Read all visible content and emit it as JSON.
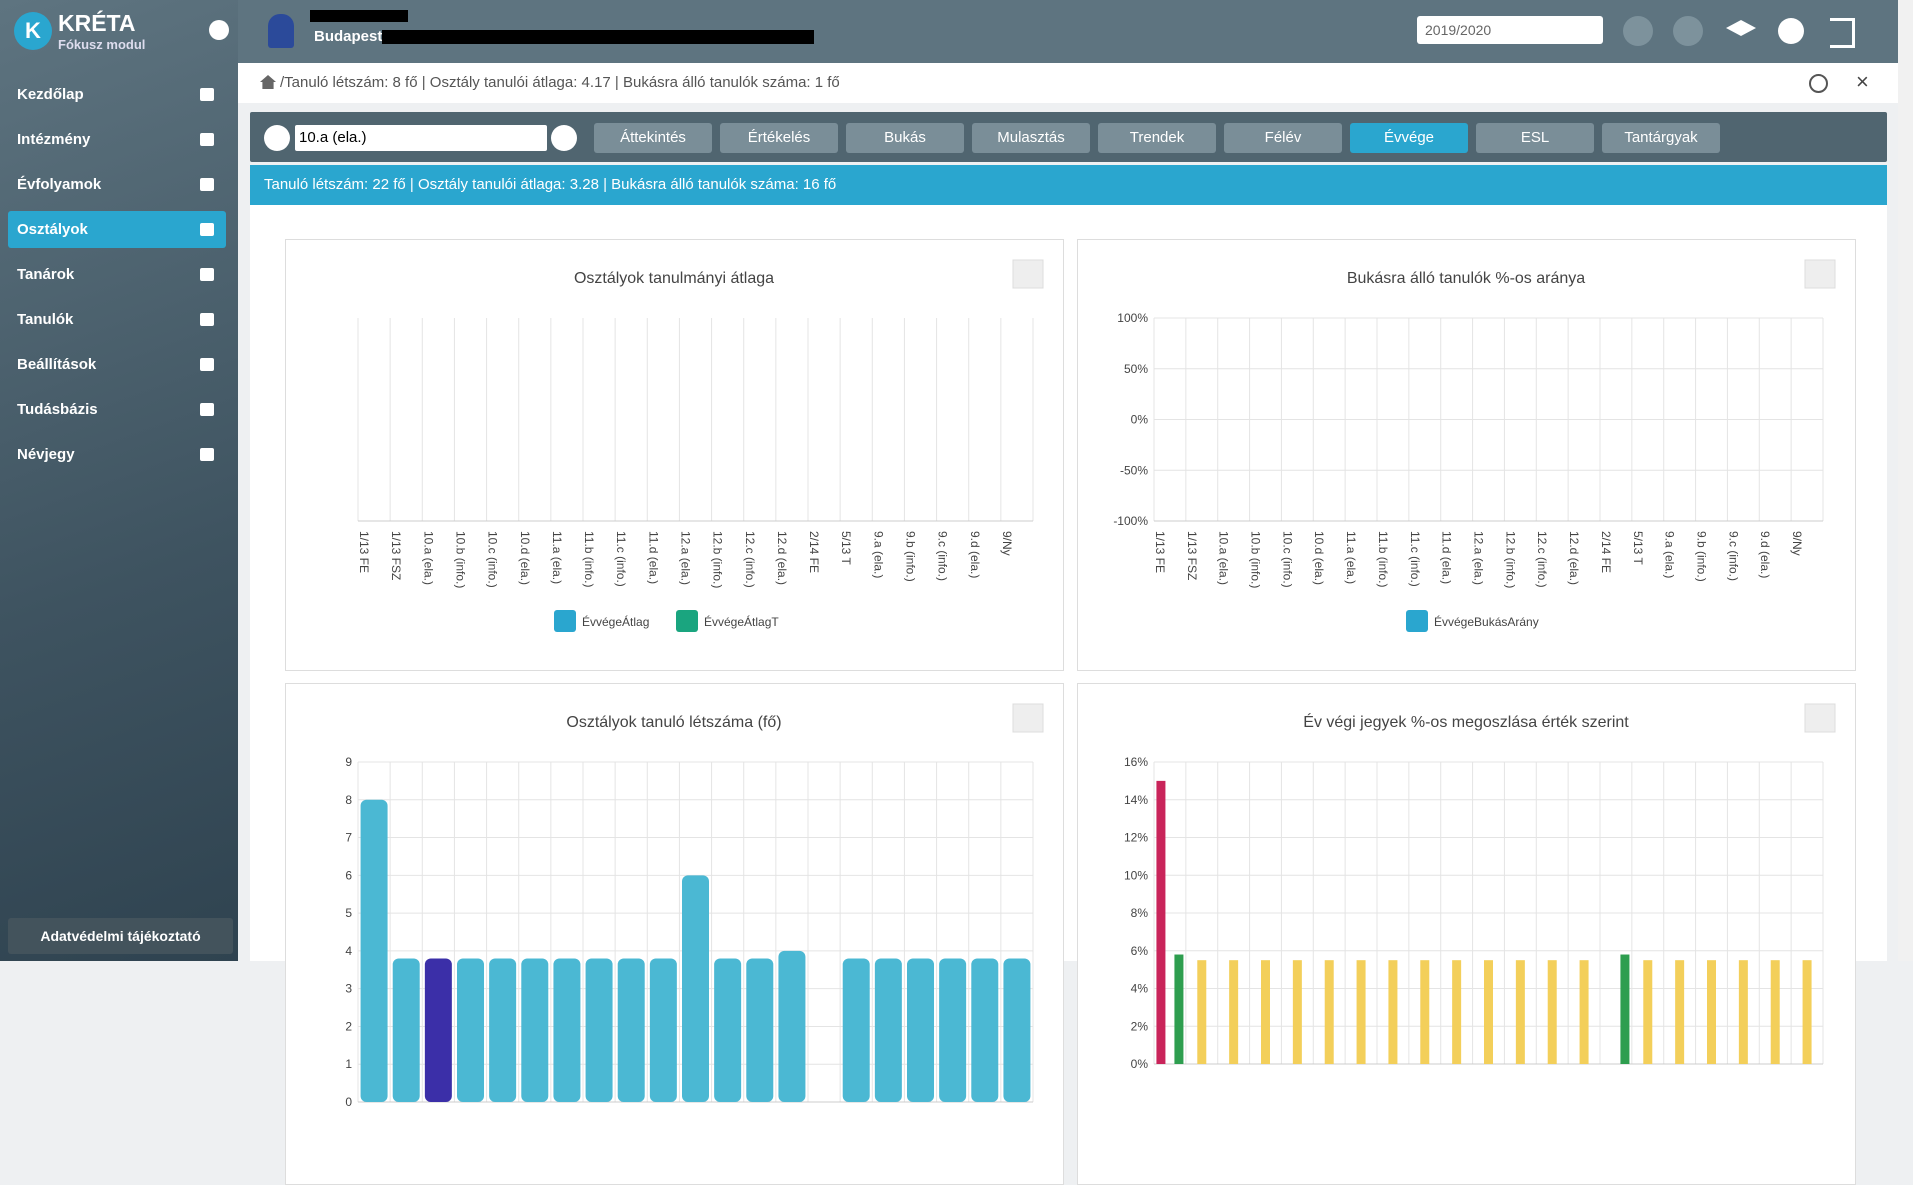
{
  "app": {
    "logo": "KRÉTA",
    "module": "Fókusz modul",
    "menu": [
      "Kezdőlap",
      "Intézmény",
      "Évfolyamok",
      "Osztályok",
      "Tanárok",
      "Tanulók",
      "Beállítások",
      "Tudásbázis",
      "Névjegy"
    ],
    "footer": "Adatvédelmi tájékoztató"
  },
  "topbar": {
    "institution": "Budapesti",
    "year": "2019/2020"
  },
  "breadcrumb": "/Tanuló létszám: 8 fő | Osztály tanulói átlaga: 4.17 | Bukásra álló tanulók száma: 1 fő",
  "toolbar": {
    "class": "10.a (ela.)",
    "buttons": [
      "Áttekintés",
      "Értékelés",
      "Bukás",
      "Mulasztás",
      "Trendek",
      "Félév",
      "Évvége",
      "ESL",
      "Tantárgyak"
    ]
  },
  "info": "Tanuló létszám: 22 fő | Osztály tanulói átlaga: 3.28 | Bukásra álló tanulók száma: 16 fő",
  "chart_data": [
    {
      "type": "bar",
      "title": "Osztályok tanulmányi átlaga",
      "categories": [
        "1/13 FE",
        "1/13 FSZ",
        "10.a (ela.)",
        "10.b (info.)",
        "10.c (info.)",
        "10.d (ela.)",
        "11.a (ela.)",
        "11.b (info.)",
        "11.c (info.)",
        "11.d (ela.)",
        "12.a (ela.)",
        "12.b (info.)",
        "12.c (info.)",
        "12.d (ela.)",
        "2/14 FE",
        "5/13 T",
        "9.a (ela.)",
        "9.b (info.)",
        "9.c (info.)",
        "9.d (ela.)",
        "9/Ny"
      ],
      "series": [
        {
          "name": "ÉvvégeÁtlag",
          "color": "#2aa6cf",
          "values": [
            null,
            null,
            null,
            null,
            null,
            null,
            null,
            null,
            null,
            null,
            null,
            null,
            null,
            null,
            null,
            null,
            null,
            null,
            null,
            null,
            null
          ]
        },
        {
          "name": "ÉvvégeÁtlagT",
          "color": "#1aa57f",
          "values": [
            null,
            null,
            null,
            null,
            null,
            null,
            null,
            null,
            null,
            null,
            null,
            null,
            null,
            null,
            null,
            null,
            null,
            null,
            null,
            null,
            null
          ]
        }
      ]
    },
    {
      "type": "bar",
      "title": "Bukásra álló tanulók %-os aránya",
      "categories": [
        "1/13 FE",
        "1/13 FSZ",
        "10.a (ela.)",
        "10.b (info.)",
        "10.c (info.)",
        "10.d (ela.)",
        "11.a (ela.)",
        "11.b (info.)",
        "11.c (info.)",
        "11.d (ela.)",
        "12.a (ela.)",
        "12.b (info.)",
        "12.c (info.)",
        "12.d (ela.)",
        "2/14 FE",
        "5/13 T",
        "9.a (ela.)",
        "9.b (info.)",
        "9.c (info.)",
        "9.d (ela.)",
        "9/Ny"
      ],
      "series": [
        {
          "name": "ÉvvégeBukásArány",
          "color": "#2aa6cf",
          "values": [
            null,
            null,
            null,
            null,
            null,
            null,
            null,
            null,
            null,
            null,
            null,
            null,
            null,
            null,
            null,
            null,
            null,
            null,
            null,
            null,
            null
          ]
        }
      ],
      "ylim": [
        -100,
        100
      ],
      "yticks": [
        {
          "value": -100,
          "label": "-100%"
        },
        {
          "value": -50,
          "label": "-50%"
        },
        {
          "value": 0,
          "label": "0%"
        },
        {
          "value": 50,
          "label": "50%"
        },
        {
          "value": 100,
          "label": "100%"
        }
      ]
    },
    {
      "type": "bar",
      "title": "Osztályok tanuló létszáma (fő)",
      "series": [
        {
          "values": [
            8,
            3.8,
            3.8,
            3.8,
            3.8,
            3.8,
            3.8,
            3.8,
            3.8,
            3.8,
            6,
            3.8,
            3.8,
            4,
            null,
            3.8,
            3.8,
            3.8,
            3.8,
            3.8,
            3.8
          ],
          "colors": [
            "#4bb8d3",
            "#4bb8d3",
            "#3b2fa8",
            "#4bb8d3",
            "#4bb8d3",
            "#4bb8d3",
            "#4bb8d3",
            "#4bb8d3",
            "#4bb8d3",
            "#4bb8d3",
            "#4bb8d3",
            "#4bb8d3",
            "#4bb8d3",
            "#4bb8d3",
            "#4bb8d3",
            "#4bb8d3",
            "#4bb8d3",
            "#4bb8d3",
            "#4bb8d3",
            "#4bb8d3",
            "#4bb8d3"
          ]
        }
      ],
      "ylim": [
        0,
        9
      ],
      "yticks": [
        0,
        1,
        2,
        3,
        4,
        5,
        6,
        7,
        8,
        9
      ]
    },
    {
      "type": "bar",
      "title": "Év végi jegyek %-os megoszlása érték szerint",
      "series": [
        {
          "color": "#c9245a",
          "values": [
            15,
            null,
            null,
            null,
            null,
            null,
            null,
            null,
            null,
            null,
            null,
            null,
            null,
            null,
            null,
            null,
            null,
            null,
            null,
            null,
            null
          ]
        },
        {
          "color": "#f3cf5a",
          "values": [
            null,
            5.5,
            5.5,
            5.5,
            5.5,
            5.5,
            5.5,
            5.5,
            5.5,
            5.5,
            5.5,
            5.5,
            5.5,
            5.5,
            null,
            5.5,
            5.5,
            5.5,
            5.5,
            5.5,
            5.5
          ]
        },
        {
          "color": "#2e9e4f",
          "values": [
            5.8,
            null,
            null,
            null,
            null,
            null,
            null,
            null,
            null,
            null,
            null,
            null,
            null,
            null,
            5.8,
            null,
            null,
            null,
            null,
            null,
            null
          ]
        }
      ],
      "ylim": [
        0,
        16
      ],
      "yticks": [
        {
          "value": 0,
          "label": "0%"
        },
        {
          "value": 2,
          "label": "2%"
        },
        {
          "value": 4,
          "label": "4%"
        },
        {
          "value": 6,
          "label": "6%"
        },
        {
          "value": 8,
          "label": "8%"
        },
        {
          "value": 10,
          "label": "10%"
        },
        {
          "value": 12,
          "label": "12%"
        },
        {
          "value": 14,
          "label": "14%"
        },
        {
          "value": 16,
          "label": "16%"
        }
      ]
    }
  ]
}
